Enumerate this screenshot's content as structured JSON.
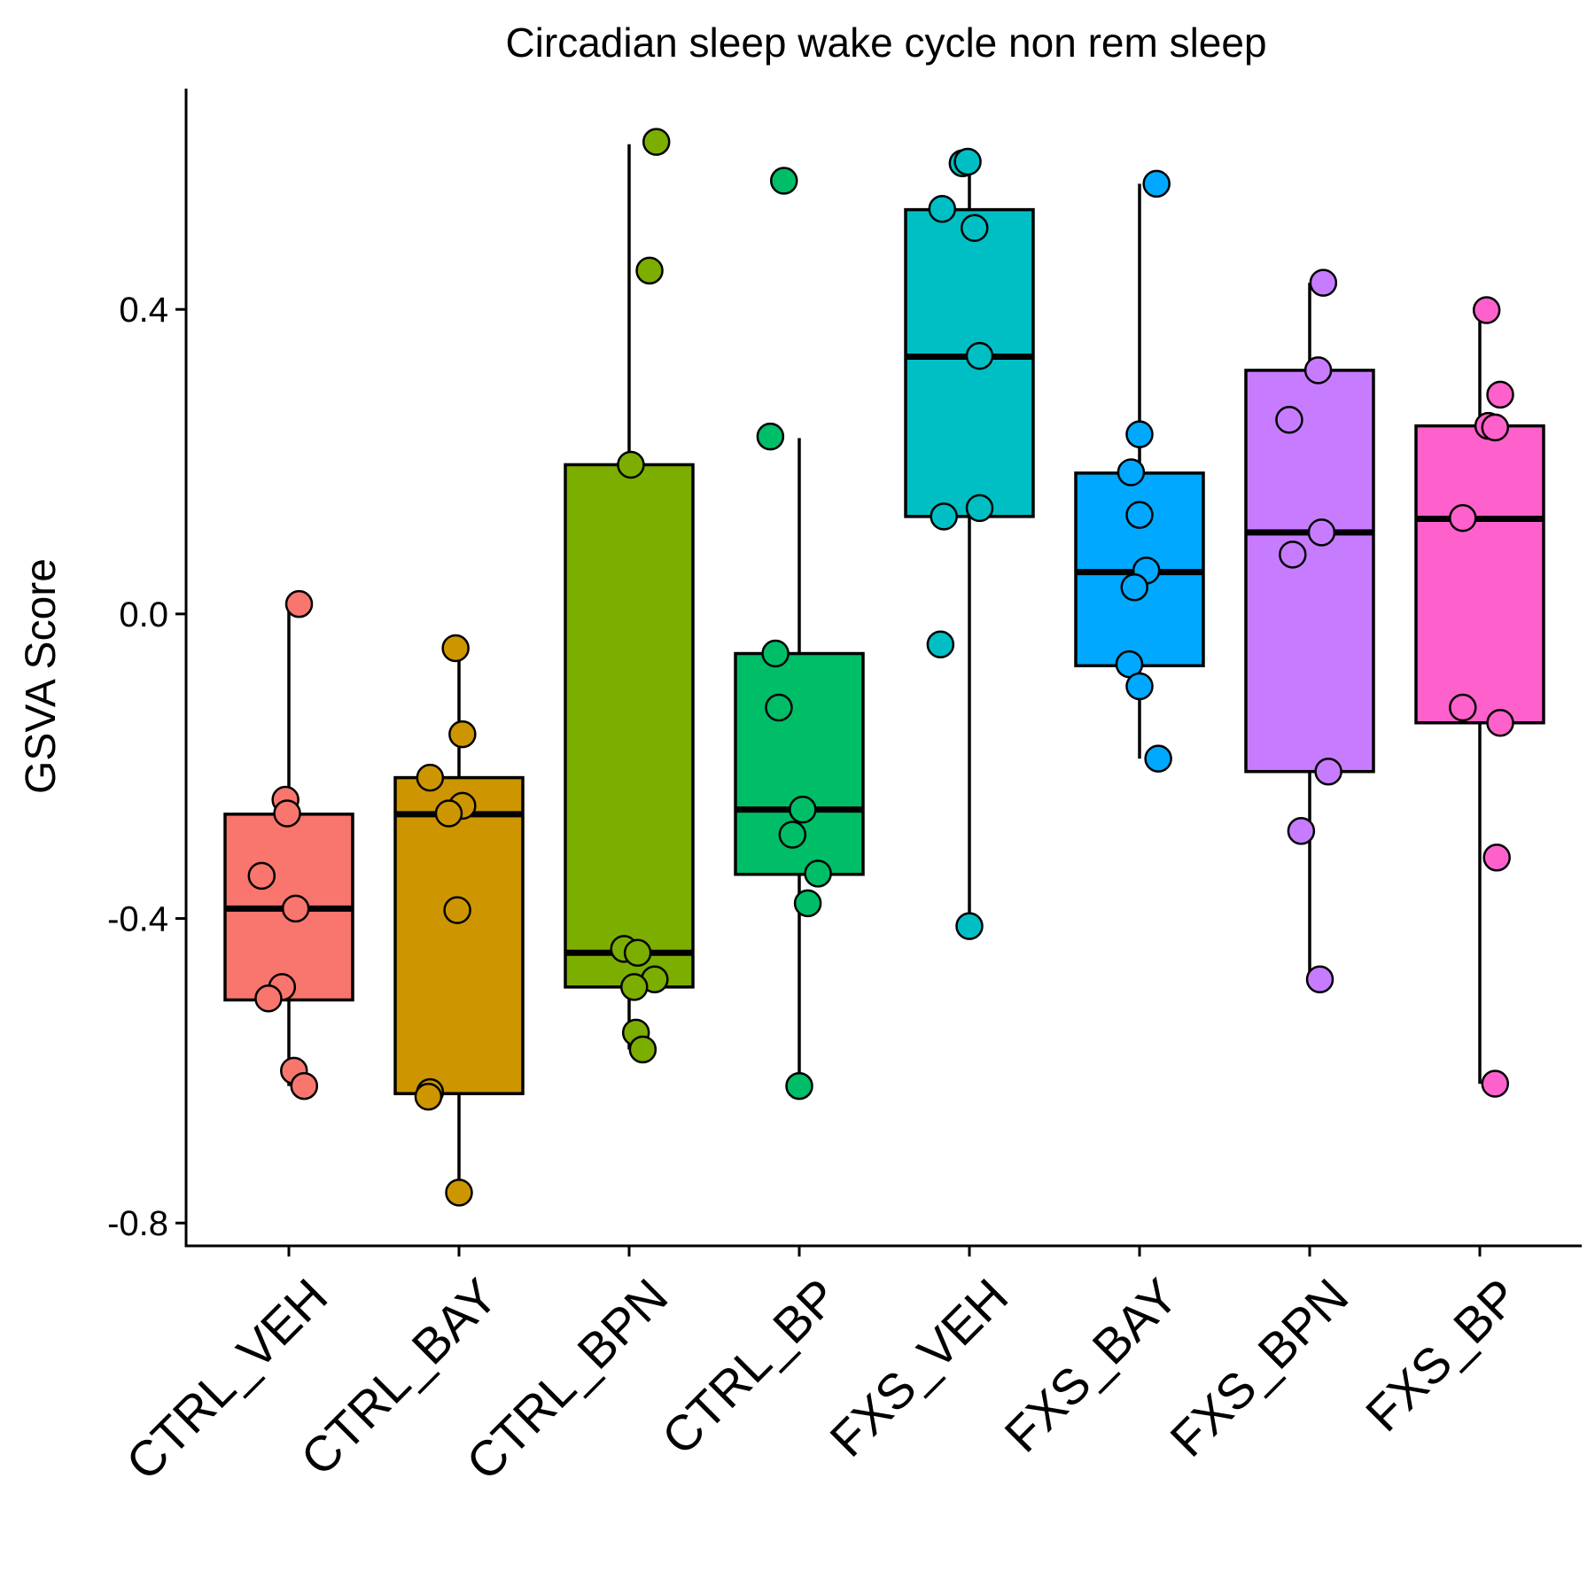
{
  "chart_data": {
    "type": "box",
    "title": "Circadian sleep wake cycle non rem sleep",
    "xlabel": "",
    "ylabel": "GSVA Score",
    "ylim": [
      -0.83,
      0.69
    ],
    "yticks": [
      -0.8,
      -0.4,
      0.0,
      0.4
    ],
    "ytick_labels": [
      "-0.8",
      "-0.4",
      "0.0",
      "0.4"
    ],
    "grid": false,
    "legend": "none",
    "categories": [
      "CTRL_VEH",
      "CTRL_BAY",
      "CTRL_BPN",
      "CTRL_BP",
      "FXS_VEH",
      "FXS_BAY",
      "FXS_BPN",
      "FXS_BP"
    ],
    "series": [
      {
        "color": "#F8766D",
        "box": {
          "whisker_low": -0.62,
          "q1": -0.507,
          "median": -0.387,
          "q3": -0.263,
          "whisker_high": 0.013
        },
        "points": [
          {
            "j": 0.06,
            "v": 0.013
          },
          {
            "j": -0.02,
            "v": -0.244
          },
          {
            "j": -0.01,
            "v": -0.262
          },
          {
            "j": -0.16,
            "v": -0.344
          },
          {
            "j": 0.04,
            "v": -0.387
          },
          {
            "j": -0.04,
            "v": -0.49
          },
          {
            "j": -0.12,
            "v": -0.505
          },
          {
            "j": 0.03,
            "v": -0.6
          },
          {
            "j": 0.09,
            "v": -0.62
          }
        ]
      },
      {
        "color": "#CD9600",
        "box": {
          "whisker_low": -0.76,
          "q1": -0.63,
          "median": -0.263,
          "q3": -0.215,
          "whisker_high": -0.045
        },
        "points": [
          {
            "j": -0.02,
            "v": -0.045
          },
          {
            "j": 0.02,
            "v": -0.158
          },
          {
            "j": -0.17,
            "v": -0.215
          },
          {
            "j": 0.02,
            "v": -0.252
          },
          {
            "j": -0.06,
            "v": -0.262
          },
          {
            "j": -0.01,
            "v": -0.389
          },
          {
            "j": -0.17,
            "v": -0.628
          },
          {
            "j": -0.18,
            "v": -0.634
          },
          {
            "j": 0.0,
            "v": -0.76
          }
        ]
      },
      {
        "color": "#7CAE00",
        "box": {
          "whisker_low": -0.572,
          "q1": -0.49,
          "median": -0.445,
          "q3": 0.196,
          "whisker_high": 0.617
        },
        "points": [
          {
            "j": 0.16,
            "v": 0.62
          },
          {
            "j": 0.12,
            "v": 0.451
          },
          {
            "j": 0.01,
            "v": 0.196
          },
          {
            "j": -0.03,
            "v": -0.44
          },
          {
            "j": 0.05,
            "v": -0.445
          },
          {
            "j": 0.15,
            "v": -0.48
          },
          {
            "j": 0.03,
            "v": -0.49
          },
          {
            "j": 0.04,
            "v": -0.55
          },
          {
            "j": 0.08,
            "v": -0.572
          }
        ]
      },
      {
        "color": "#00BE67",
        "box": {
          "whisker_low": -0.62,
          "q1": -0.342,
          "median": -0.257,
          "q3": -0.052,
          "whisker_high": 0.231
        },
        "points": [
          {
            "j": -0.09,
            "v": 0.569
          },
          {
            "j": -0.17,
            "v": 0.233
          },
          {
            "j": -0.14,
            "v": -0.052
          },
          {
            "j": -0.12,
            "v": -0.123
          },
          {
            "j": 0.02,
            "v": -0.257
          },
          {
            "j": -0.04,
            "v": -0.29
          },
          {
            "j": 0.11,
            "v": -0.341
          },
          {
            "j": 0.05,
            "v": -0.38
          },
          {
            "j": 0.0,
            "v": -0.62
          }
        ]
      },
      {
        "color": "#00BFC4",
        "box": {
          "whisker_low": -0.41,
          "q1": 0.128,
          "median": 0.338,
          "q3": 0.531,
          "whisker_high": 0.592
        },
        "points": [
          {
            "j": -0.04,
            "v": 0.592
          },
          {
            "j": -0.01,
            "v": 0.594
          },
          {
            "j": -0.16,
            "v": 0.532
          },
          {
            "j": 0.03,
            "v": 0.507
          },
          {
            "j": 0.06,
            "v": 0.339
          },
          {
            "j": 0.06,
            "v": 0.139
          },
          {
            "j": -0.15,
            "v": 0.128
          },
          {
            "j": -0.17,
            "v": -0.04
          },
          {
            "j": 0.0,
            "v": -0.41
          }
        ]
      },
      {
        "color": "#00A9FF",
        "box": {
          "whisker_low": -0.19,
          "q1": -0.068,
          "median": 0.055,
          "q3": 0.185,
          "whisker_high": 0.565
        },
        "points": [
          {
            "j": 0.1,
            "v": 0.565
          },
          {
            "j": 0.0,
            "v": 0.236
          },
          {
            "j": -0.05,
            "v": 0.186
          },
          {
            "j": 0.0,
            "v": 0.13
          },
          {
            "j": 0.04,
            "v": 0.057
          },
          {
            "j": -0.03,
            "v": 0.035
          },
          {
            "j": -0.06,
            "v": -0.066
          },
          {
            "j": 0.0,
            "v": -0.095
          },
          {
            "j": 0.11,
            "v": -0.19
          }
        ]
      },
      {
        "color": "#C77CFF",
        "box": {
          "whisker_low": -0.48,
          "q1": -0.207,
          "median": 0.107,
          "q3": 0.32,
          "whisker_high": 0.435
        },
        "points": [
          {
            "j": 0.08,
            "v": 0.435
          },
          {
            "j": 0.05,
            "v": 0.32
          },
          {
            "j": -0.12,
            "v": 0.255
          },
          {
            "j": 0.07,
            "v": 0.107
          },
          {
            "j": -0.1,
            "v": 0.078
          },
          {
            "j": 0.11,
            "v": -0.207
          },
          {
            "j": -0.05,
            "v": -0.285
          },
          {
            "j": 0.06,
            "v": -0.48
          }
        ]
      },
      {
        "color": "#FF61CC",
        "box": {
          "whisker_low": -0.617,
          "q1": -0.143,
          "median": 0.125,
          "q3": 0.247,
          "whisker_high": 0.399
        },
        "points": [
          {
            "j": 0.04,
            "v": 0.399
          },
          {
            "j": 0.12,
            "v": 0.288
          },
          {
            "j": 0.05,
            "v": 0.247
          },
          {
            "j": 0.09,
            "v": 0.245
          },
          {
            "j": -0.1,
            "v": 0.126
          },
          {
            "j": -0.1,
            "v": -0.123
          },
          {
            "j": 0.12,
            "v": -0.143
          },
          {
            "j": 0.1,
            "v": -0.32
          },
          {
            "j": 0.09,
            "v": -0.617
          }
        ]
      }
    ]
  }
}
